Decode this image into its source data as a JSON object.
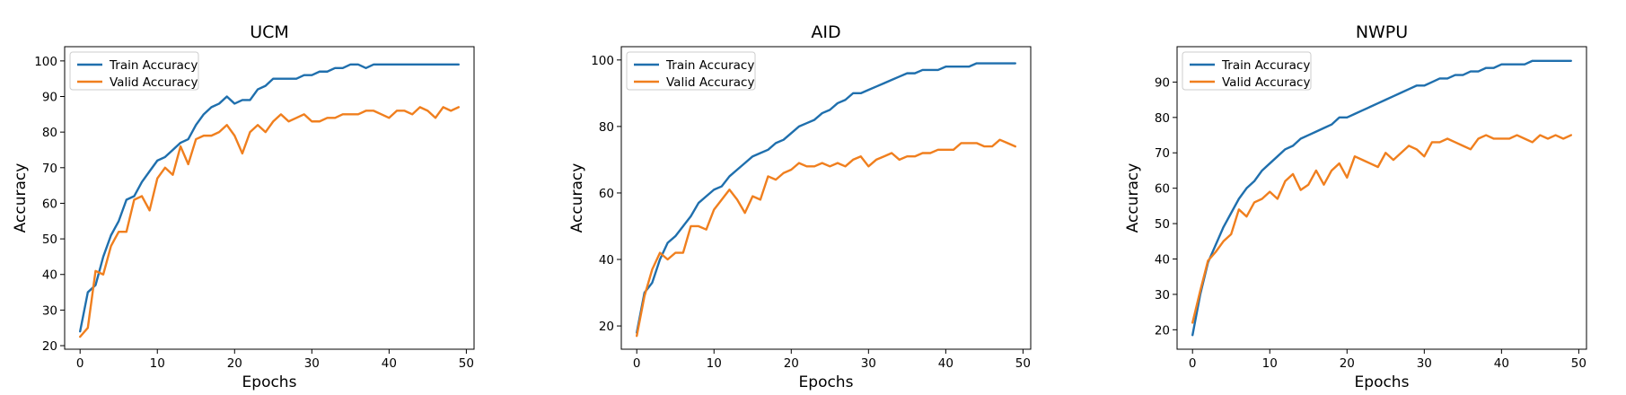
{
  "colors": {
    "train": "#1f6fad",
    "valid": "#f07f1e",
    "axis": "#000000"
  },
  "chart_data": [
    {
      "type": "line",
      "title": "UCM",
      "xlabel": "Epochs",
      "ylabel": "Accuracy",
      "xlim": [
        -2,
        51
      ],
      "ylim": [
        19,
        104
      ],
      "xticks": [
        0,
        10,
        20,
        30,
        40,
        50
      ],
      "yticks": [
        20,
        30,
        40,
        50,
        60,
        70,
        80,
        90,
        100
      ],
      "legend": "top-left",
      "x": [
        0,
        1,
        2,
        3,
        4,
        5,
        6,
        7,
        8,
        9,
        10,
        11,
        12,
        13,
        14,
        15,
        16,
        17,
        18,
        19,
        20,
        21,
        22,
        23,
        24,
        25,
        26,
        27,
        28,
        29,
        30,
        31,
        32,
        33,
        34,
        35,
        36,
        37,
        38,
        39,
        40,
        41,
        42,
        43,
        44,
        45,
        46,
        47,
        48,
        49
      ],
      "series": [
        {
          "name": "Train Accuracy",
          "values": [
            24,
            35,
            37,
            45,
            51,
            55,
            61,
            62,
            66,
            69,
            72,
            73,
            75,
            77,
            78,
            82,
            85,
            87,
            88,
            90,
            88,
            89,
            89,
            92,
            93,
            95,
            95,
            95,
            95,
            96,
            96,
            97,
            97,
            98,
            98,
            99,
            99,
            98,
            99,
            99,
            99,
            99,
            99,
            99,
            99,
            99,
            99,
            99,
            99,
            99
          ]
        },
        {
          "name": "Valid Accuracy",
          "values": [
            22.5,
            25,
            41,
            40,
            48,
            52,
            52,
            61,
            62,
            58,
            67,
            70,
            68,
            76,
            71,
            78,
            79,
            79,
            80,
            82,
            79,
            74,
            80,
            82,
            80,
            83,
            85,
            83,
            84,
            85,
            83,
            83,
            84,
            84,
            85,
            85,
            85,
            86,
            86,
            85,
            84,
            86,
            86,
            85,
            87,
            86,
            84,
            87,
            86,
            87
          ]
        }
      ]
    },
    {
      "type": "line",
      "title": "AID",
      "xlabel": "Epochs",
      "ylabel": "Accuracy",
      "xlim": [
        -2,
        51
      ],
      "ylim": [
        13,
        104
      ],
      "xticks": [
        0,
        10,
        20,
        30,
        40,
        50
      ],
      "yticks": [
        20,
        40,
        60,
        80,
        100
      ],
      "legend": "top-left",
      "x": [
        0,
        1,
        2,
        3,
        4,
        5,
        6,
        7,
        8,
        9,
        10,
        11,
        12,
        13,
        14,
        15,
        16,
        17,
        18,
        19,
        20,
        21,
        22,
        23,
        24,
        25,
        26,
        27,
        28,
        29,
        30,
        31,
        32,
        33,
        34,
        35,
        36,
        37,
        38,
        39,
        40,
        41,
        42,
        43,
        44,
        45,
        46,
        47,
        48,
        49
      ],
      "series": [
        {
          "name": "Train Accuracy",
          "values": [
            18,
            30,
            33,
            40,
            45,
            47,
            50,
            53,
            57,
            59,
            61,
            62,
            65,
            67,
            69,
            71,
            72,
            73,
            75,
            76,
            78,
            80,
            81,
            82,
            84,
            85,
            87,
            88,
            90,
            90,
            91,
            92,
            93,
            94,
            95,
            96,
            96,
            97,
            97,
            97,
            98,
            98,
            98,
            98,
            99,
            99,
            99,
            99,
            99,
            99
          ]
        },
        {
          "name": "Valid Accuracy",
          "values": [
            17,
            29,
            37,
            42,
            40,
            42,
            42,
            50,
            50,
            49,
            55,
            58,
            61,
            58,
            54,
            59,
            58,
            65,
            64,
            66,
            67,
            69,
            68,
            68,
            69,
            68,
            69,
            68,
            70,
            71,
            68,
            70,
            71,
            72,
            70,
            71,
            71,
            72,
            72,
            73,
            73,
            73,
            75,
            75,
            75,
            74,
            74,
            76,
            75,
            74
          ]
        }
      ]
    },
    {
      "type": "line",
      "title": "NWPU",
      "xlabel": "Epochs",
      "ylabel": "Accuracy",
      "xlim": [
        -2,
        51
      ],
      "ylim": [
        14.5,
        100
      ],
      "xticks": [
        0,
        10,
        20,
        30,
        40,
        50
      ],
      "yticks": [
        20,
        30,
        40,
        50,
        60,
        70,
        80,
        90
      ],
      "legend": "top-left",
      "x": [
        0,
        1,
        2,
        3,
        4,
        5,
        6,
        7,
        8,
        9,
        10,
        11,
        12,
        13,
        14,
        15,
        16,
        17,
        18,
        19,
        20,
        21,
        22,
        23,
        24,
        25,
        26,
        27,
        28,
        29,
        30,
        31,
        32,
        33,
        34,
        35,
        36,
        37,
        38,
        39,
        40,
        41,
        42,
        43,
        44,
        45,
        46,
        47,
        48,
        49
      ],
      "series": [
        {
          "name": "Train Accuracy",
          "values": [
            18.5,
            30,
            39,
            44,
            49,
            53,
            57,
            60,
            62,
            65,
            67,
            69,
            71,
            72,
            74,
            75,
            76,
            77,
            78,
            80,
            80,
            81,
            82,
            83,
            84,
            85,
            86,
            87,
            88,
            89,
            89,
            90,
            91,
            91,
            92,
            92,
            93,
            93,
            94,
            94,
            95,
            95,
            95,
            95,
            96,
            96,
            96,
            96,
            96,
            96
          ]
        },
        {
          "name": "Valid Accuracy",
          "values": [
            22,
            31,
            39.5,
            42,
            45,
            47,
            54,
            52,
            56,
            57,
            59,
            57,
            62,
            64,
            59.5,
            61,
            65,
            61,
            65,
            67,
            63,
            69,
            68,
            67,
            66,
            70,
            68,
            70,
            72,
            71,
            69,
            73,
            73,
            74,
            73,
            72,
            71,
            74,
            75,
            74,
            74,
            74,
            75,
            74,
            73,
            75,
            74,
            75,
            74,
            75
          ]
        }
      ]
    }
  ]
}
